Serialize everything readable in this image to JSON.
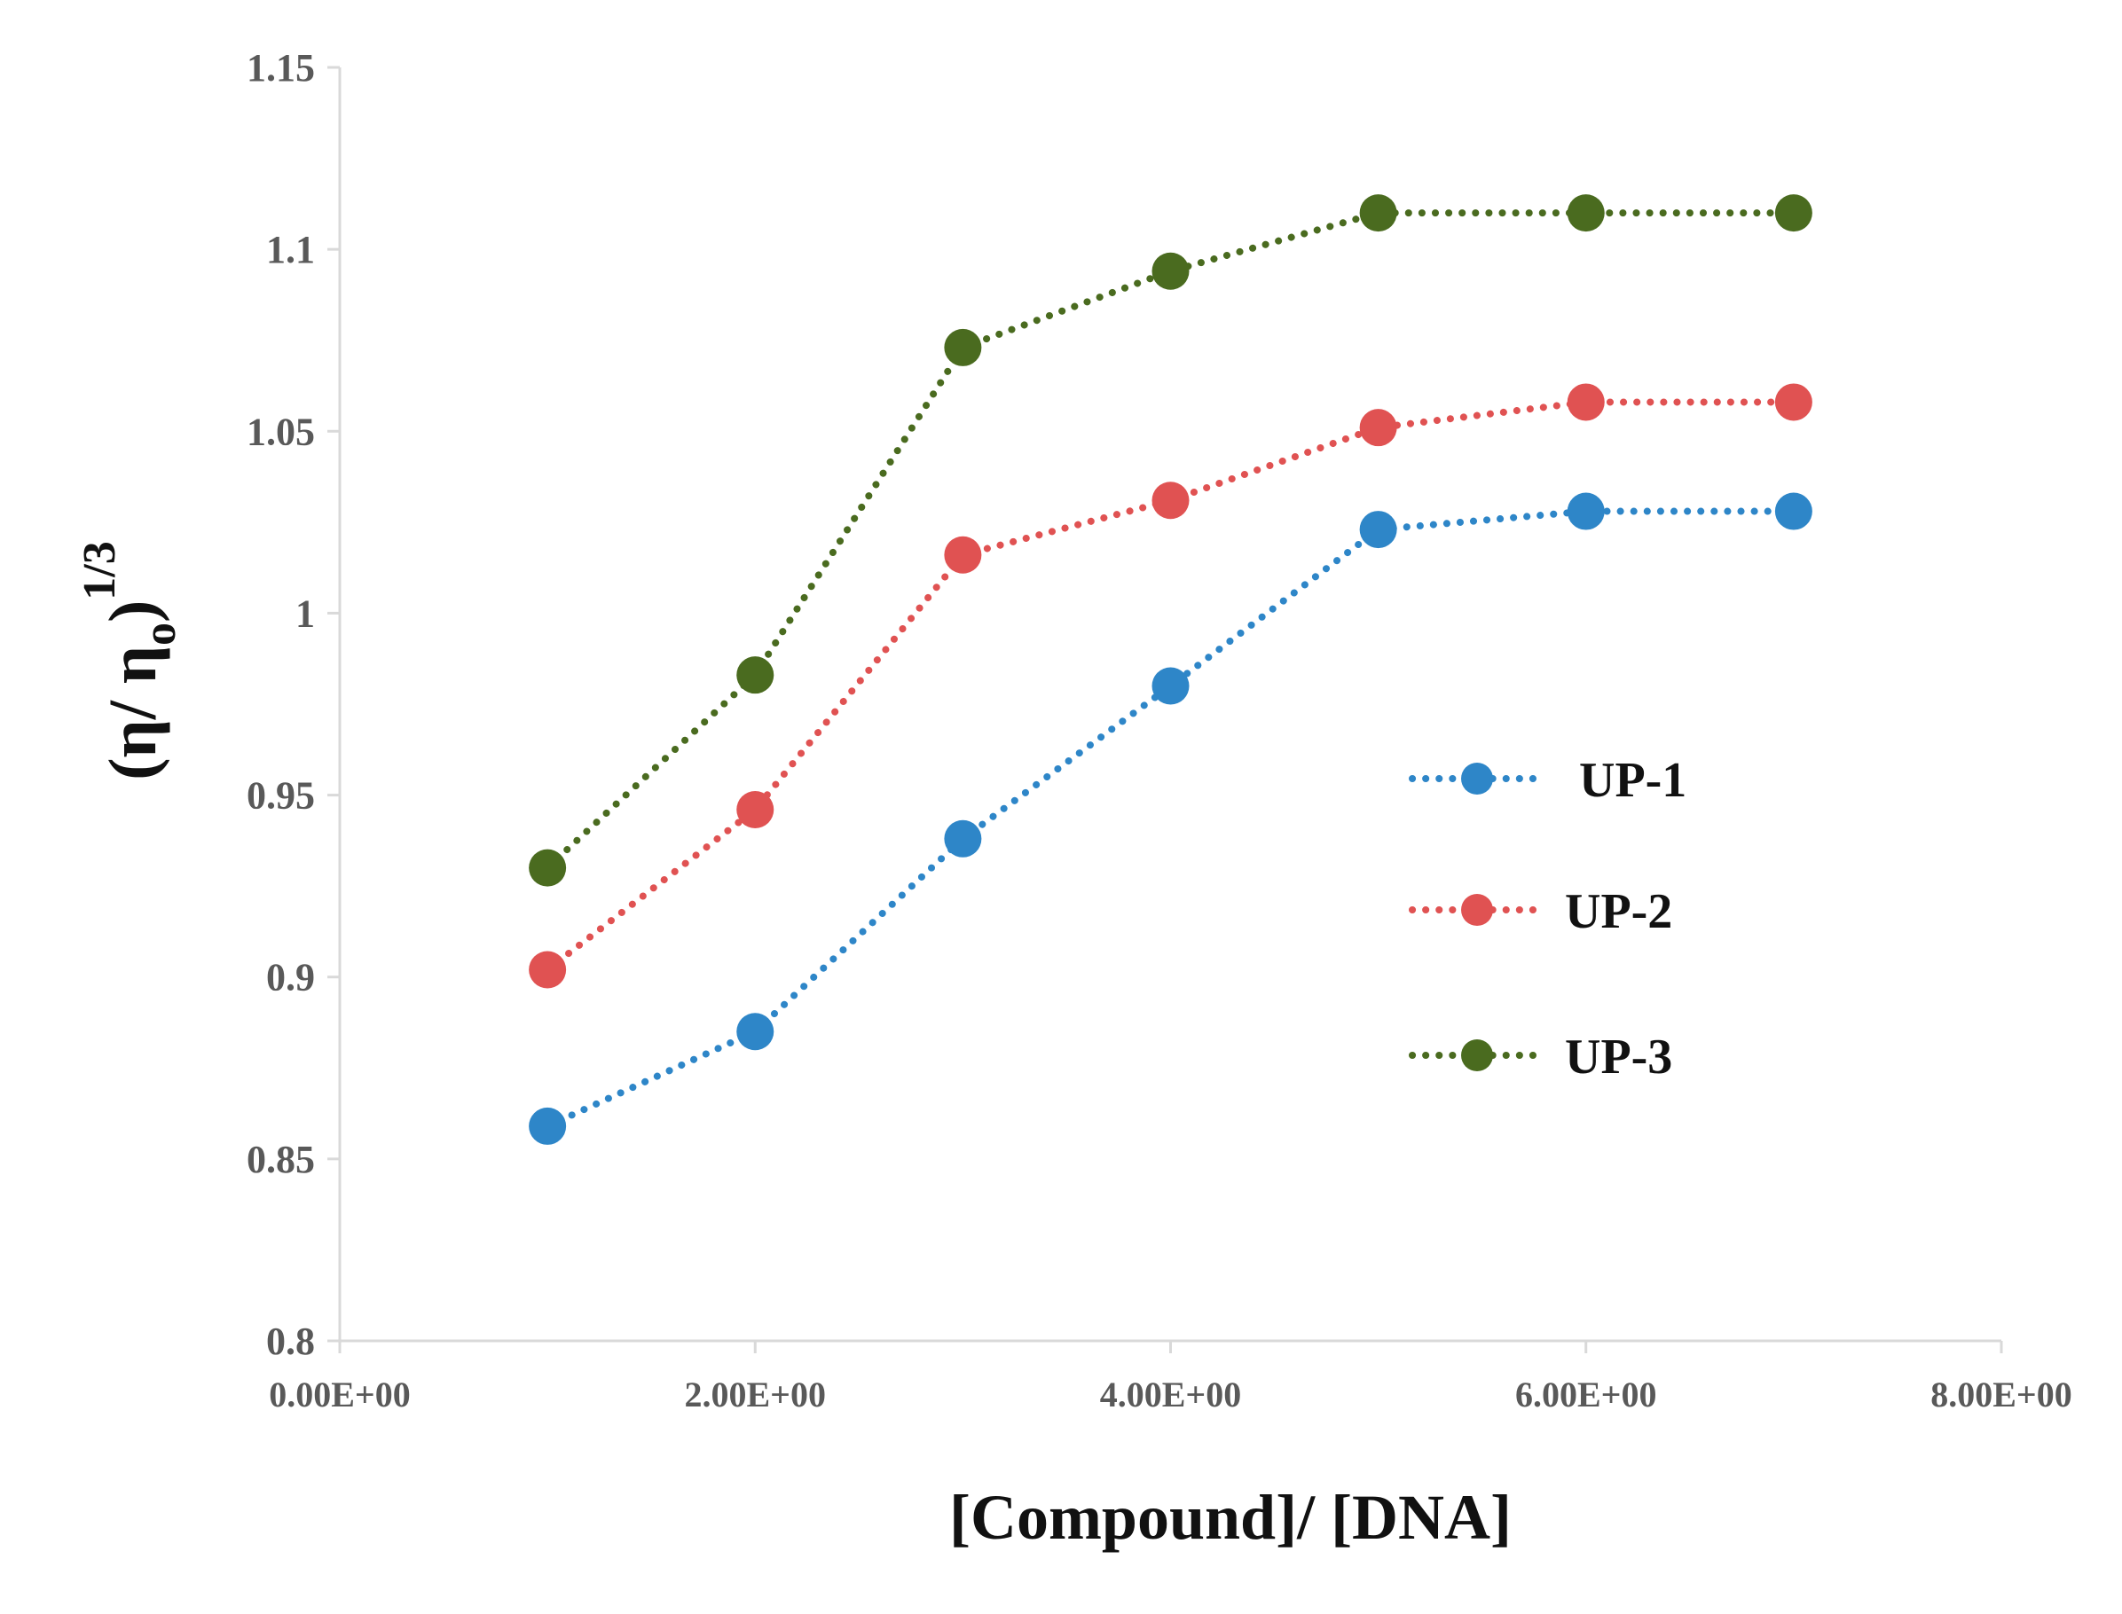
{
  "chart_data": {
    "type": "line",
    "title": "",
    "xlabel": "[Compound]/ [DNA]",
    "ylabel": {
      "main": "(η/ η",
      "subscript": "o",
      "close": ")",
      "superscript": "1/3"
    },
    "xlim": [
      0,
      8
    ],
    "ylim": [
      0.8,
      1.15
    ],
    "x_ticks": [
      0,
      2,
      4,
      6,
      8
    ],
    "x_tick_labels": [
      "0.00E+00",
      "2.00E+00",
      "4.00E+00",
      "6.00E+00",
      "8.00E+00"
    ],
    "y_ticks": [
      0.8,
      0.85,
      0.9,
      0.95,
      1.0,
      1.05,
      1.1,
      1.15
    ],
    "y_tick_labels": [
      "0.8",
      "0.85",
      "0.9",
      "0.95",
      "1",
      "1.05",
      "1.1",
      "1.15"
    ],
    "grid": false,
    "legend_position": "right",
    "x": [
      1,
      2,
      3,
      4,
      5,
      6,
      7
    ],
    "series": [
      {
        "name": "UP-1",
        "color": "#2e86c8",
        "values": [
          0.859,
          0.885,
          0.938,
          0.98,
          1.023,
          1.028,
          1.028
        ]
      },
      {
        "name": "UP-2",
        "color": "#e05252",
        "values": [
          0.902,
          0.946,
          1.016,
          1.031,
          1.051,
          1.058,
          1.058
        ]
      },
      {
        "name": "UP-3",
        "color": "#4a6b1f",
        "values": [
          0.93,
          0.983,
          1.073,
          1.094,
          1.11,
          1.11,
          1.11
        ]
      }
    ]
  }
}
